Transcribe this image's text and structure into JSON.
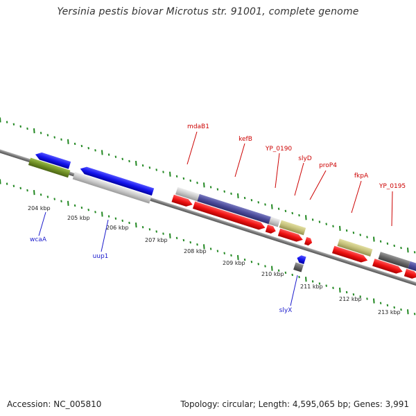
{
  "title": "Yersinia pestis biovar Microtus str. 91001, complete genome",
  "footer": {
    "accession": "Accession: NC_005810",
    "summary": "Topology: circular; Length: 4,595,065 bp; Genes: 3,991"
  },
  "ruler": {
    "unit": "kbp",
    "ticks": [
      "204 kbp",
      "205 kbp",
      "206 kbp",
      "207 kbp",
      "208 kbp",
      "209 kbp",
      "210 kbp",
      "211 kbp",
      "212 kbp",
      "213 kbp"
    ]
  },
  "genes": {
    "forward_labels": [
      "mdaB1",
      "kefB",
      "YP_0190",
      "slyD",
      "proP4",
      "fkpA",
      "YP_0195"
    ],
    "reverse_labels": [
      "wcaA",
      "uup1",
      "slyX"
    ]
  },
  "colors": {
    "forward_label": "#cc0000",
    "reverse_label": "#1a1acc",
    "tick": "#228822",
    "backbone": "#777777",
    "red_gene": "#ee1111",
    "blue_gene": "#1515ee",
    "olive_gene": "#6f8f24",
    "grey_gene": "#c8c8c8",
    "purple_gene": "#4a4a9a",
    "khaki_gene": "#c4c07a",
    "dark_gene": "#666666"
  }
}
